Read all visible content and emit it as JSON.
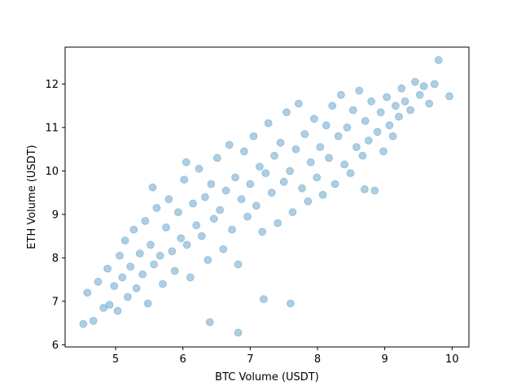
{
  "chart_data": {
    "type": "scatter",
    "title": "",
    "xlabel": "BTC Volume (USDT)",
    "ylabel": "ETH Volume (USDT)",
    "xlim": [
      4.25,
      10.25
    ],
    "ylim": [
      5.95,
      12.85
    ],
    "xticks": [
      5,
      6,
      7,
      8,
      9,
      10
    ],
    "yticks": [
      6,
      7,
      8,
      9,
      10,
      11,
      12
    ],
    "grid": false,
    "legend": "none",
    "point_color": "#1f77b4",
    "point_alpha": 0.12,
    "series": [
      {
        "x": [
          4.52,
          4.58,
          4.67,
          4.74,
          4.82,
          4.88,
          4.91,
          4.98,
          5.03,
          5.06,
          5.1,
          5.14,
          5.18,
          5.22,
          5.27,
          5.31,
          5.36,
          5.4,
          5.44,
          5.48,
          5.52,
          5.57,
          5.61,
          5.66,
          5.7,
          5.75,
          5.79,
          5.84,
          5.88,
          5.93,
          5.97,
          6.02,
          6.06,
          6.11,
          6.15,
          6.2,
          6.24,
          6.28,
          6.33,
          6.37,
          6.42,
          6.46,
          6.51,
          6.55,
          6.6,
          6.64,
          6.69,
          6.73,
          6.78,
          6.82,
          6.87,
          6.91,
          6.96,
          7.0,
          7.05,
          7.09,
          7.14,
          7.18,
          7.23,
          7.27,
          7.32,
          7.36,
          7.41,
          7.45,
          7.5,
          7.54,
          7.59,
          7.63,
          7.68,
          7.72,
          7.77,
          7.81,
          7.86,
          7.9,
          7.95,
          7.99,
          8.04,
          8.08,
          8.13,
          8.17,
          8.22,
          8.26,
          8.31,
          8.35,
          8.4,
          8.44,
          8.49,
          8.53,
          8.58,
          8.62,
          8.67,
          8.71,
          8.76,
          8.8,
          8.85,
          8.89,
          8.94,
          8.98,
          9.03,
          9.07,
          9.12,
          9.16,
          9.21,
          9.25,
          9.3,
          9.38,
          9.45,
          9.52,
          9.58,
          9.66,
          9.74,
          9.8,
          9.96,
          6.82,
          6.4,
          7.6,
          6.05,
          5.55,
          8.7,
          7.2
        ],
        "y": [
          6.48,
          7.2,
          6.55,
          7.45,
          6.85,
          7.75,
          6.92,
          7.35,
          6.78,
          8.05,
          7.55,
          8.4,
          7.1,
          7.8,
          8.65,
          7.3,
          8.1,
          7.62,
          8.85,
          6.95,
          8.3,
          7.85,
          9.15,
          8.05,
          7.4,
          8.7,
          9.35,
          8.15,
          7.7,
          9.05,
          8.45,
          9.8,
          8.3,
          7.55,
          9.25,
          8.75,
          10.05,
          8.5,
          9.4,
          7.95,
          9.7,
          8.9,
          10.3,
          9.1,
          8.2,
          9.55,
          10.6,
          8.65,
          9.85,
          7.85,
          9.35,
          10.45,
          8.95,
          9.7,
          10.8,
          9.2,
          10.1,
          8.6,
          9.95,
          11.1,
          9.5,
          10.35,
          8.8,
          10.65,
          9.75,
          11.35,
          10.0,
          9.05,
          10.5,
          11.55,
          9.6,
          10.85,
          9.3,
          10.2,
          11.2,
          9.85,
          10.55,
          9.45,
          11.05,
          10.3,
          11.5,
          9.7,
          10.8,
          11.75,
          10.15,
          11.0,
          9.95,
          11.4,
          10.55,
          11.85,
          10.35,
          11.15,
          10.7,
          11.6,
          9.55,
          10.9,
          11.35,
          10.45,
          11.7,
          11.05,
          10.8,
          11.5,
          11.25,
          11.9,
          11.6,
          11.4,
          12.05,
          11.75,
          11.95,
          11.55,
          12.0,
          12.55,
          11.72,
          6.28,
          6.52,
          6.95,
          10.2,
          9.62,
          9.58,
          7.05
        ]
      }
    ]
  }
}
